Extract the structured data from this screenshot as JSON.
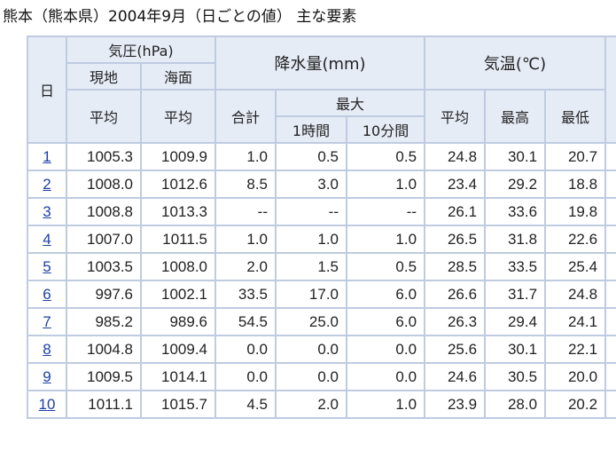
{
  "title": "熊本（熊本県）2004年9月（日ごとの値） 主な要素",
  "headers": {
    "day": "日",
    "pressure": "気圧(hPa)",
    "station": "現地",
    "sea": "海面",
    "precip": "降水量(mm)",
    "temp": "気温(℃)",
    "avg": "平均",
    "total": "合計",
    "max": "最大",
    "one_hour": "1時間",
    "ten_min": "10分間",
    "high": "最高",
    "low": "最低"
  },
  "rows": [
    {
      "day": "1",
      "station": "1005.3",
      "sea": "1009.9",
      "total": "1.0",
      "h1": "0.5",
      "m10": "0.5",
      "tavg": "24.8",
      "tmax": "30.1",
      "tmin": "20.7"
    },
    {
      "day": "2",
      "station": "1008.0",
      "sea": "1012.6",
      "total": "8.5",
      "h1": "3.0",
      "m10": "1.0",
      "tavg": "23.4",
      "tmax": "29.2",
      "tmin": "18.8"
    },
    {
      "day": "3",
      "station": "1008.8",
      "sea": "1013.3",
      "total": "--",
      "h1": "--",
      "m10": "--",
      "tavg": "26.1",
      "tmax": "33.6",
      "tmin": "19.8"
    },
    {
      "day": "4",
      "station": "1007.0",
      "sea": "1011.5",
      "total": "1.0",
      "h1": "1.0",
      "m10": "1.0",
      "tavg": "26.5",
      "tmax": "31.8",
      "tmin": "22.6"
    },
    {
      "day": "5",
      "station": "1003.5",
      "sea": "1008.0",
      "total": "2.0",
      "h1": "1.5",
      "m10": "0.5",
      "tavg": "28.5",
      "tmax": "33.5",
      "tmin": "25.4"
    },
    {
      "day": "6",
      "station": "997.6",
      "sea": "1002.1",
      "total": "33.5",
      "h1": "17.0",
      "m10": "6.0",
      "tavg": "26.6",
      "tmax": "31.7",
      "tmin": "24.8"
    },
    {
      "day": "7",
      "station": "985.2",
      "sea": "989.6",
      "total": "54.5",
      "h1": "25.0",
      "m10": "6.0",
      "tavg": "26.3",
      "tmax": "29.4",
      "tmin": "24.1"
    },
    {
      "day": "8",
      "station": "1004.8",
      "sea": "1009.4",
      "total": "0.0",
      "h1": "0.0",
      "m10": "0.0",
      "tavg": "25.6",
      "tmax": "30.1",
      "tmin": "22.1"
    },
    {
      "day": "9",
      "station": "1009.5",
      "sea": "1014.1",
      "total": "0.0",
      "h1": "0.0",
      "m10": "0.0",
      "tavg": "24.6",
      "tmax": "30.5",
      "tmin": "20.0"
    },
    {
      "day": "10",
      "station": "1011.1",
      "sea": "1015.7",
      "total": "4.5",
      "h1": "2.0",
      "m10": "1.0",
      "tavg": "23.9",
      "tmax": "28.0",
      "tmin": "20.2"
    }
  ]
}
